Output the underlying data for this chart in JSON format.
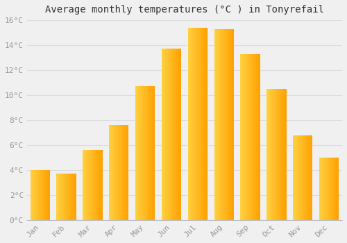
{
  "title": "Average monthly temperatures (°C ) in Tonyrefail",
  "months": [
    "Jan",
    "Feb",
    "Mar",
    "Apr",
    "May",
    "Jun",
    "Jul",
    "Aug",
    "Sep",
    "Oct",
    "Nov",
    "Dec"
  ],
  "temperatures": [
    4.0,
    3.7,
    5.6,
    7.6,
    10.7,
    13.7,
    15.4,
    15.3,
    13.3,
    10.5,
    6.8,
    5.0
  ],
  "bar_color_left": "#FFD040",
  "bar_color_right": "#FFA000",
  "background_color": "#F0F0F0",
  "grid_color": "#DDDDDD",
  "ylim": [
    0,
    16
  ],
  "yticks": [
    0,
    2,
    4,
    6,
    8,
    10,
    12,
    14,
    16
  ],
  "ytick_labels": [
    "0°C",
    "2°C",
    "4°C",
    "6°C",
    "8°C",
    "10°C",
    "12°C",
    "14°C",
    "16°C"
  ],
  "title_fontsize": 10,
  "tick_fontsize": 8,
  "tick_color": "#999999",
  "spine_color": "#BBBBBB",
  "bar_width": 0.75
}
